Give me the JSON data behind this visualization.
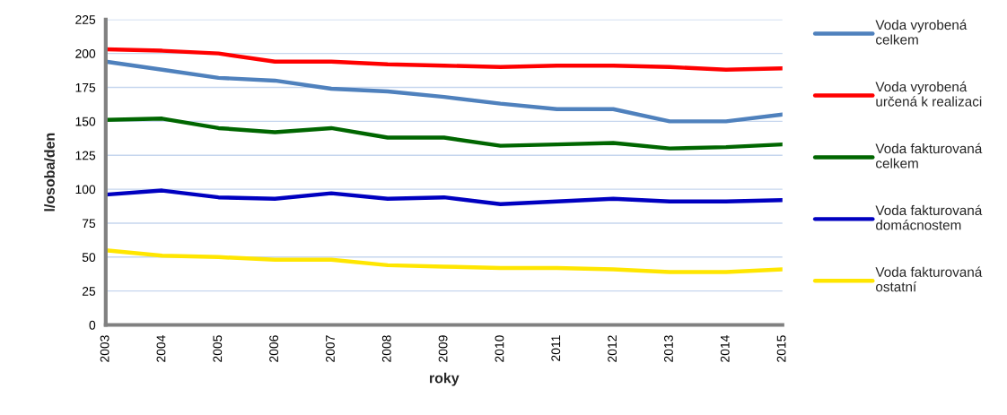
{
  "chart_data": {
    "type": "line",
    "xlabel": "roky",
    "ylabel": "l/osoba/den",
    "x": [
      2003,
      2004,
      2005,
      2006,
      2007,
      2008,
      2009,
      2010,
      2011,
      2012,
      2013,
      2014,
      2015
    ],
    "xlim": [
      2003,
      2015
    ],
    "xticks": [
      2003,
      2004,
      2005,
      2006,
      2007,
      2008,
      2009,
      2010,
      2011,
      2012,
      2013,
      2014,
      2015
    ],
    "ylim": [
      0,
      225
    ],
    "yticks": [
      0,
      25,
      50,
      75,
      100,
      125,
      150,
      175,
      200,
      225
    ],
    "grid": "y",
    "legend": "right",
    "series": [
      {
        "name": "Voda vyrobená\ncelkem",
        "color": "#4f81bd",
        "values": [
          194,
          188,
          182,
          180,
          174,
          172,
          168,
          163,
          159,
          159,
          150,
          150,
          155
        ]
      },
      {
        "name": "Voda vyrobená\nurčená k realizaci",
        "color": "#ff0000",
        "values": [
          203,
          202,
          200,
          194,
          194,
          192,
          191,
          190,
          191,
          191,
          190,
          188,
          189
        ]
      },
      {
        "name": "Voda fakturovaná\ncelkem",
        "color": "#006600",
        "values": [
          151,
          152,
          145,
          142,
          145,
          138,
          138,
          132,
          133,
          134,
          130,
          131,
          133
        ]
      },
      {
        "name": "Voda fakturovaná\ndomácnostem",
        "color": "#0000c0",
        "values": [
          96,
          99,
          94,
          93,
          97,
          93,
          94,
          89,
          91,
          93,
          91,
          91,
          92
        ]
      },
      {
        "name": "Voda fakturovaná\nostatní",
        "color": "#ffe600",
        "values": [
          55,
          51,
          50,
          48,
          48,
          44,
          43,
          42,
          42,
          41,
          39,
          39,
          41
        ]
      }
    ]
  }
}
